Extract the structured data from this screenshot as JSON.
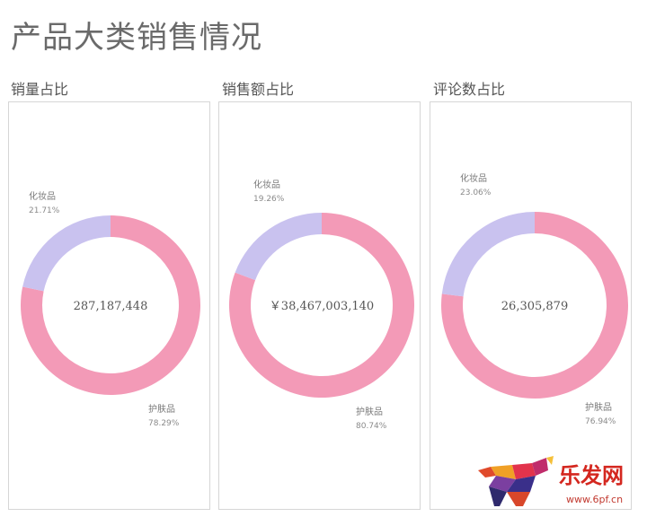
{
  "title": "产品大类销售情况",
  "colors": {
    "skincare": "#f39ab7",
    "cosmetics": "#c9c2ef"
  },
  "watermark": {
    "site_text": "乐发网",
    "url_text": "www.6pf.cn"
  },
  "chart_data": [
    {
      "type": "pie",
      "title": "销量占比",
      "center_label": "287,187,448",
      "slices": [
        {
          "name": "化妆品",
          "percent_label": "21.71%",
          "value": 21.71,
          "color": "#c9c2ef"
        },
        {
          "name": "护肤品",
          "percent_label": "78.29%",
          "value": 78.29,
          "color": "#f39ab7"
        }
      ]
    },
    {
      "type": "pie",
      "title": "销售额占比",
      "center_label": "￥38,467,003,140",
      "slices": [
        {
          "name": "化妆品",
          "percent_label": "19.26%",
          "value": 19.26,
          "color": "#c9c2ef"
        },
        {
          "name": "护肤品",
          "percent_label": "80.74%",
          "value": 80.74,
          "color": "#f39ab7"
        }
      ]
    },
    {
      "type": "pie",
      "title": "评论数占比",
      "center_label": "26,305,879",
      "slices": [
        {
          "name": "化妆品",
          "percent_label": "23.06%",
          "value": 23.06,
          "color": "#c9c2ef"
        },
        {
          "name": "护肤品",
          "percent_label": "76.94%",
          "value": 76.94,
          "color": "#f39ab7"
        }
      ]
    }
  ]
}
